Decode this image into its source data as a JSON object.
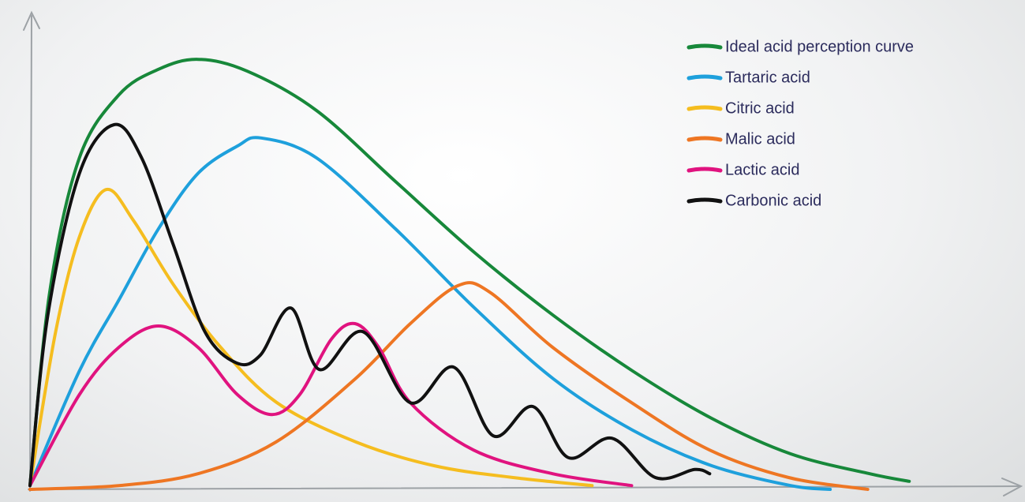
{
  "chart_data": {
    "type": "line",
    "xlim": [
      0,
      100
    ],
    "ylim": [
      0,
      100
    ],
    "series": [
      {
        "name": "Ideal acid perception curve",
        "color": "#17883a",
        "x": [
          0,
          2,
          5,
          9,
          13,
          17,
          22,
          29,
          37,
          45,
          53,
          61,
          69,
          77,
          85,
          89
        ],
        "values": [
          0.8,
          41.7,
          70,
          83.3,
          88.7,
          90.8,
          88.3,
          80,
          65,
          50,
          36.7,
          25,
          15,
          7.5,
          3.3,
          1.7
        ]
      },
      {
        "name": "Tartaric acid",
        "color": "#1ea0dc",
        "x": [
          0,
          5,
          9,
          13,
          17,
          21,
          23.4,
          29,
          37,
          45,
          53,
          61,
          69,
          77,
          81
        ],
        "values": [
          0.8,
          25,
          40,
          55,
          66.7,
          72.5,
          74.2,
          70,
          55,
          38.3,
          23.3,
          12.5,
          5,
          0.8,
          0
        ]
      },
      {
        "name": "Citric acid",
        "color": "#f5bd1f",
        "x": [
          0,
          2.6,
          5,
          7.7,
          10.5,
          14.5,
          19.3,
          25,
          33,
          40.9,
          48.9,
          56.9
        ],
        "values": [
          0.8,
          33.3,
          53.3,
          63.3,
          56.7,
          43.3,
          30,
          18.3,
          10,
          5,
          2.5,
          0.8
        ]
      },
      {
        "name": "Malic acid",
        "color": "#ee7623",
        "x": [
          0,
          9,
          17,
          24.9,
          32.9,
          38.5,
          43.3,
          46.5,
          52.9,
          60.9,
          68.8,
          76.8,
          84.8
        ],
        "values": [
          0,
          0.8,
          3.3,
          10,
          23.3,
          35,
          43,
          41.7,
          30,
          18.3,
          8.3,
          2.5,
          0
        ]
      },
      {
        "name": "Lactic acid",
        "color": "#e0137f",
        "x": [
          0,
          5,
          9,
          13,
          17,
          21,
          24.5,
          27.3,
          30.5,
          32.9,
          35.3,
          38.5,
          44.9,
          52.9,
          60.9
        ],
        "values": [
          0.8,
          20,
          30,
          34.5,
          30,
          20,
          15.8,
          20,
          31.7,
          35,
          30,
          18.3,
          8.3,
          3.3,
          0.8
        ]
      },
      {
        "name": "Carbonic acid",
        "color": "#111111",
        "x": [
          0,
          1.8,
          5,
          8.5,
          11.3,
          14.5,
          17.7,
          20.9,
          23.3,
          26.4,
          29.3,
          33.7,
          38.5,
          42.9,
          46.9,
          50.9,
          54.5,
          58.9,
          63.3,
          67.3,
          68.8
        ],
        "values": [
          0.8,
          36.7,
          66.7,
          77,
          70,
          51.7,
          33.3,
          26.7,
          28.3,
          38.3,
          25.3,
          33.3,
          18.3,
          25.8,
          11.3,
          17.5,
          6.7,
          10.8,
          2.5,
          4.2,
          3.3
        ]
      }
    ],
    "legend": "upper right"
  }
}
